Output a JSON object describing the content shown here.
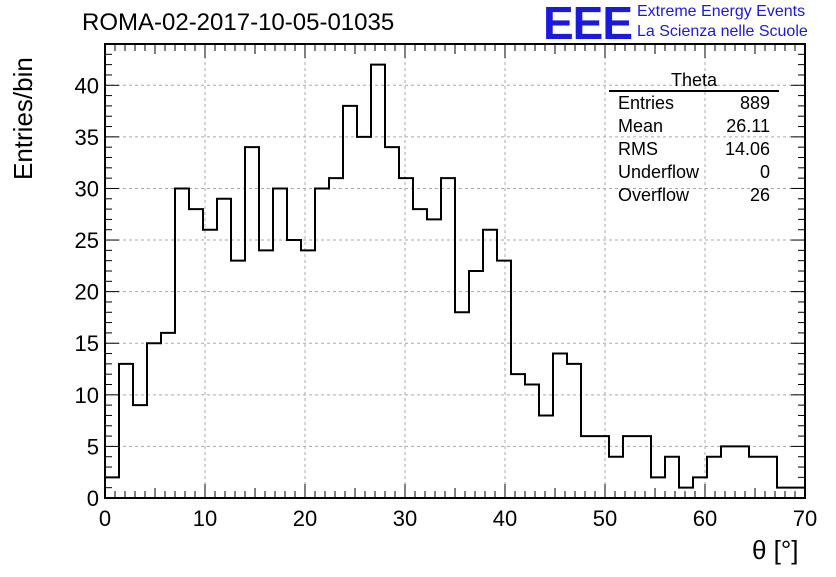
{
  "title": "ROMA-02-2017-10-05-01035",
  "logo": {
    "mark": "EEE",
    "line1": "Extreme Energy Events",
    "line2": "La Scienza nelle Scuole",
    "color": "#1a1adc"
  },
  "stats_box": {
    "title": "Theta",
    "rows": [
      {
        "label": "Entries",
        "value": "889"
      },
      {
        "label": "Mean",
        "value": "26.11"
      },
      {
        "label": "RMS",
        "value": "14.06"
      },
      {
        "label": "Underflow",
        "value": "0"
      },
      {
        "label": "Overflow",
        "value": "26"
      }
    ]
  },
  "chart_data": {
    "type": "bar",
    "histogram": true,
    "xlabel": "θ [°]",
    "ylabel": "Entries/bin",
    "xlim": [
      0,
      70
    ],
    "ylim": [
      0,
      44
    ],
    "x_ticks": [
      0,
      10,
      20,
      30,
      40,
      50,
      60,
      70
    ],
    "y_ticks": [
      0,
      5,
      10,
      15,
      20,
      25,
      30,
      35,
      40
    ],
    "grid": true,
    "bin_width": 1.4,
    "bin_edges_start": 0,
    "values": [
      2,
      13,
      9,
      15,
      16,
      30,
      28,
      26,
      29,
      23,
      34,
      24,
      30,
      25,
      24,
      30,
      31,
      38,
      35,
      42,
      34,
      31,
      28,
      27,
      31,
      18,
      22,
      26,
      23,
      12,
      11,
      8,
      14,
      13,
      6,
      6,
      4,
      6,
      6,
      2,
      4,
      1,
      2,
      4,
      5,
      5,
      4,
      4,
      1,
      1
    ]
  }
}
